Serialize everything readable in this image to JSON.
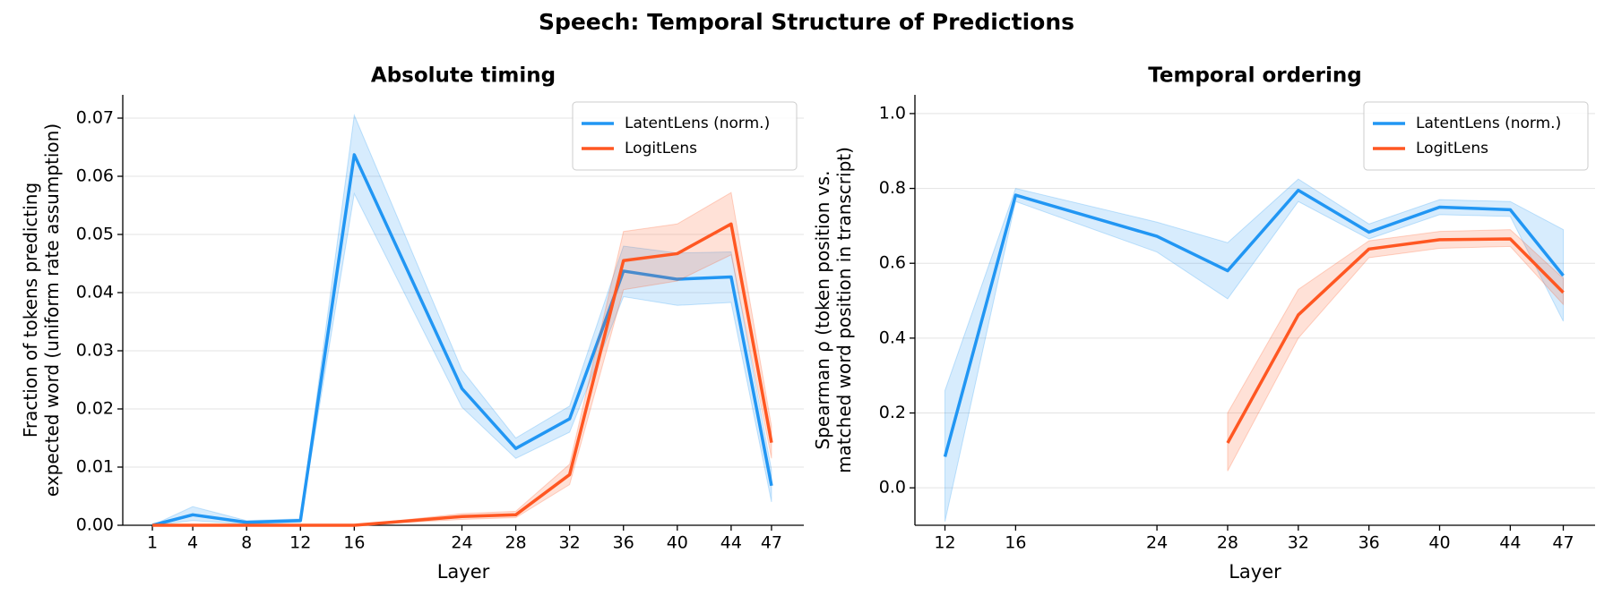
{
  "title": "Speech: Temporal Structure of Predictions",
  "chart_data": [
    {
      "type": "line",
      "title": "Absolute timing",
      "xlabel": "Layer",
      "ylabel": [
        "Fraction of tokens predicting",
        "expected word (uniform rate assumption)"
      ],
      "x": [
        1,
        4,
        8,
        12,
        16,
        24,
        28,
        32,
        36,
        40,
        44,
        47
      ],
      "xlim": [
        -1.2,
        49.4
      ],
      "xticks": [
        1,
        4,
        8,
        12,
        16,
        24,
        28,
        32,
        36,
        40,
        44,
        47
      ],
      "ylim": [
        0,
        0.074
      ],
      "yticks": [
        {
          "value": 0,
          "label": "0.00"
        },
        {
          "value": 0.01,
          "label": "0.01"
        },
        {
          "value": 0.02,
          "label": "0.02"
        },
        {
          "value": 0.03,
          "label": "0.03"
        },
        {
          "value": 0.04,
          "label": "0.04"
        },
        {
          "value": 0.05,
          "label": "0.05"
        },
        {
          "value": 0.06,
          "label": "0.06"
        },
        {
          "value": 0.07,
          "label": "0.07"
        }
      ],
      "grid": true,
      "legend": "upper right",
      "series": [
        {
          "name": "LatentLens (norm.)",
          "color": "#2196f3",
          "values": [
            0.0,
            0.0018,
            0.0005,
            0.0008,
            0.0637,
            0.0235,
            0.0132,
            0.0183,
            0.0437,
            0.0423,
            0.0427,
            0.0068
          ],
          "lower": [
            0.0,
            0.0008,
            0.0002,
            0.0005,
            0.057,
            0.0203,
            0.0115,
            0.016,
            0.0393,
            0.0378,
            0.0383,
            0.004
          ],
          "upper": [
            0.0,
            0.0032,
            0.0008,
            0.0011,
            0.0705,
            0.0267,
            0.015,
            0.0205,
            0.048,
            0.0468,
            0.047,
            0.0095
          ]
        },
        {
          "name": "LogitLens",
          "color": "#ff5722",
          "values": [
            0.0,
            0.0,
            0.0,
            0.0,
            0.0,
            0.0015,
            0.0018,
            0.0087,
            0.0455,
            0.0467,
            0.0518,
            0.0142
          ],
          "lower": [
            0.0,
            0.0,
            0.0,
            0.0,
            0.0,
            0.001,
            0.0013,
            0.007,
            0.0405,
            0.042,
            0.0465,
            0.0115
          ],
          "upper": [
            0.0,
            0.0,
            0.0,
            0.0,
            0.0,
            0.002,
            0.0024,
            0.0105,
            0.0505,
            0.0518,
            0.0572,
            0.017
          ]
        }
      ]
    },
    {
      "type": "line",
      "title": "Temporal ordering",
      "xlabel": "Layer",
      "ylabel": [
        "Spearman ρ (token position vs.",
        "matched word position in transcript)"
      ],
      "x": [
        12,
        16,
        24,
        28,
        32,
        36,
        40,
        44,
        47
      ],
      "xlim": [
        10.3,
        48.8
      ],
      "xticks": [
        12,
        16,
        24,
        28,
        32,
        36,
        40,
        44,
        47
      ],
      "ylim": [
        -0.1,
        1.05
      ],
      "yticks": [
        {
          "value": 0,
          "label": "0.0"
        },
        {
          "value": 0.2,
          "label": "0.2"
        },
        {
          "value": 0.4,
          "label": "0.4"
        },
        {
          "value": 0.6,
          "label": "0.6"
        },
        {
          "value": 0.8,
          "label": "0.8"
        },
        {
          "value": 1,
          "label": "1.0"
        }
      ],
      "grid": true,
      "legend": "upper right",
      "series": [
        {
          "name": "LatentLens (norm.)",
          "color": "#2196f3",
          "values": [
            0.083,
            0.782,
            0.672,
            0.58,
            0.795,
            0.683,
            0.75,
            0.743,
            0.567
          ],
          "lower": [
            -0.09,
            0.765,
            0.63,
            0.505,
            0.765,
            0.665,
            0.73,
            0.725,
            0.445
          ],
          "upper": [
            0.26,
            0.8,
            0.71,
            0.655,
            0.825,
            0.705,
            0.77,
            0.765,
            0.69
          ]
        },
        {
          "name": "LogitLens",
          "color": "#ff5722",
          "values": [
            null,
            null,
            null,
            0.12,
            0.462,
            0.638,
            0.663,
            0.665,
            0.522
          ],
          "lower": [
            null,
            null,
            null,
            0.045,
            0.4,
            0.615,
            0.64,
            0.645,
            0.49
          ],
          "upper": [
            null,
            null,
            null,
            0.2,
            0.53,
            0.66,
            0.685,
            0.69,
            0.56
          ]
        }
      ]
    }
  ]
}
